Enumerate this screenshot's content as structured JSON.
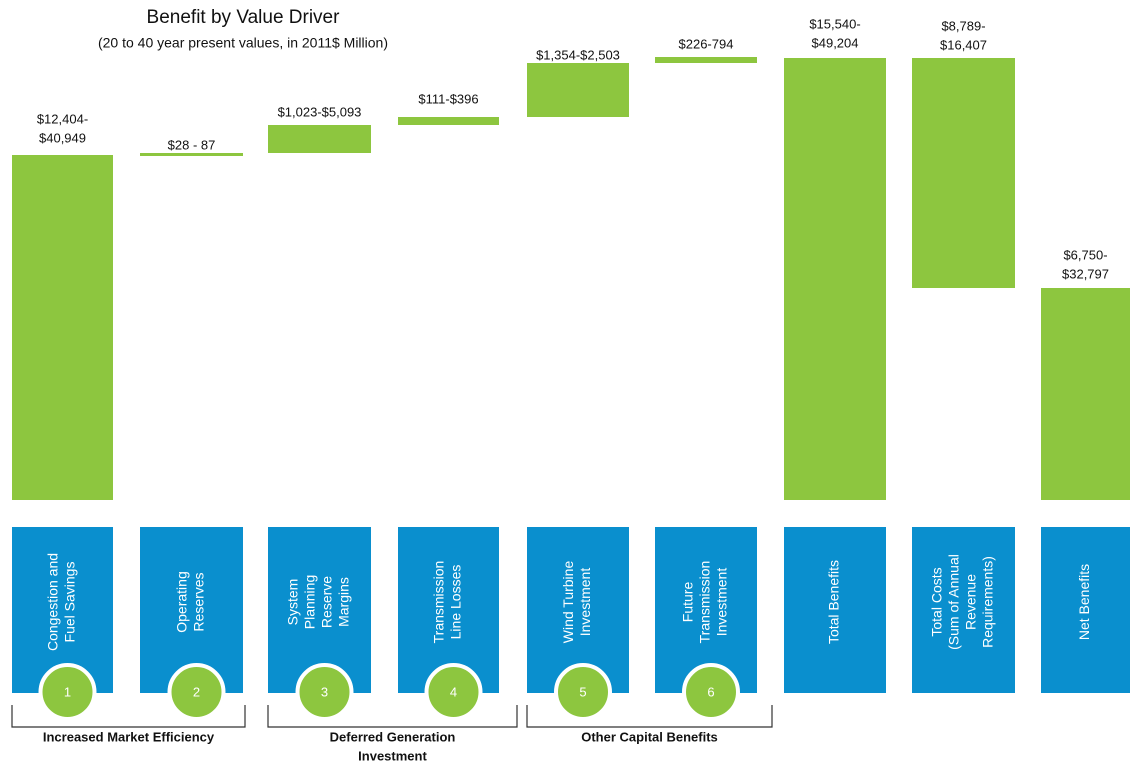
{
  "chart_data": {
    "type": "waterfall",
    "title": "Benefit by Value Driver",
    "subtitle": "(20 to 40 year present values, in 2011$ Million)",
    "categories": [
      [
        "Congestion and",
        "Fuel Savings"
      ],
      [
        "Operating",
        "Reserves"
      ],
      [
        "System",
        "Planning",
        "Reserve",
        "Margins"
      ],
      [
        "Transmission",
        "Line Losses"
      ],
      [
        "Wind Turbine",
        "Investment"
      ],
      [
        "Future",
        "Transmission",
        "Investment"
      ],
      [
        "Total Benefits"
      ],
      [
        "Total Costs",
        "(Sum of Annual",
        "Revenue",
        "Requirements)"
      ],
      [
        "Net Benefits"
      ]
    ],
    "range_labels": [
      [
        "$12,404-",
        "$40,949"
      ],
      [
        "$28 - 87"
      ],
      [
        "$1,023-$5,093"
      ],
      [
        "$111-$396"
      ],
      [
        "$1,354-$2,503"
      ],
      [
        "$226-794"
      ],
      [
        "$15,540-",
        "$49,204"
      ],
      [
        "$8,789-",
        "$16,407"
      ],
      [
        "$6,750-",
        "$32,797"
      ]
    ],
    "badges": [
      1,
      2,
      3,
      4,
      5,
      6
    ],
    "groups": [
      [
        "Increased Market Efficiency"
      ],
      [
        "Deferred Generation",
        "Investment"
      ],
      [
        "Other Capital Benefits"
      ]
    ],
    "color": "#8dc63f",
    "box_color": "#0a8fce"
  }
}
